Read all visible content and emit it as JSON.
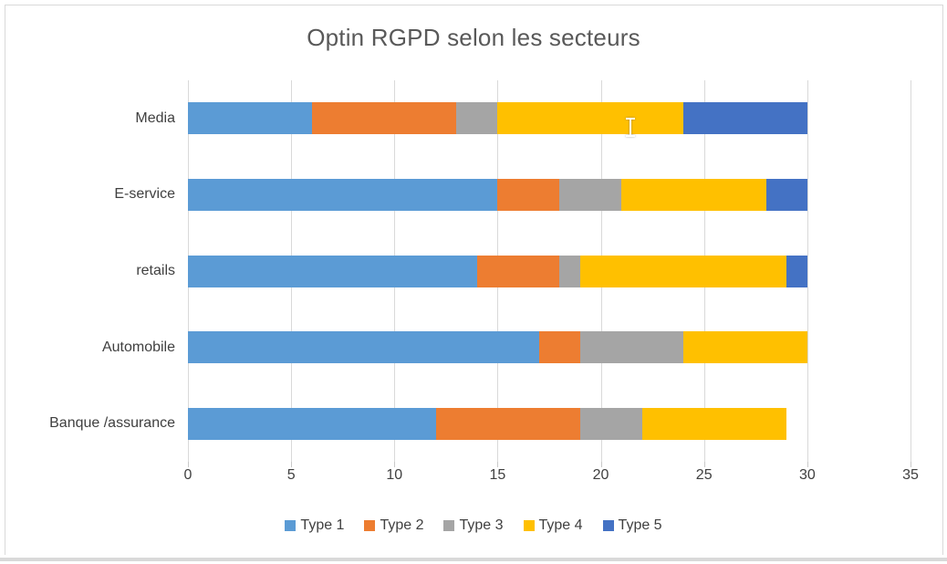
{
  "window": {
    "background_color": "#ffffff",
    "border_color": "#d9d9d9"
  },
  "chart_data": {
    "type": "bar",
    "orientation": "horizontal",
    "stacked": true,
    "title": "Optin RGPD selon les secteurs",
    "categories": [
      "Media",
      "E-service",
      "retails",
      "Automobile",
      "Banque /assurance"
    ],
    "series": [
      {
        "name": "Type 1",
        "color": "#5B9BD5",
        "values": [
          6,
          15,
          14,
          17,
          12
        ]
      },
      {
        "name": "Type 2",
        "color": "#ED7D31",
        "values": [
          7,
          3,
          4,
          2,
          7
        ]
      },
      {
        "name": "Type 3",
        "color": "#A5A5A5",
        "values": [
          2,
          3,
          1,
          5,
          3
        ]
      },
      {
        "name": "Type 4",
        "color": "#FFC000",
        "values": [
          9,
          7,
          10,
          6,
          7
        ]
      },
      {
        "name": "Type 5",
        "color": "#4472C4",
        "values": [
          6,
          2,
          1,
          0,
          0
        ]
      }
    ],
    "x_axis": {
      "min": 0,
      "max": 35,
      "tick_step": 5,
      "tick_labels": [
        "0",
        "5",
        "10",
        "15",
        "20",
        "25",
        "30",
        "35"
      ]
    },
    "legend": {
      "position": "bottom",
      "entries": [
        "Type 1",
        "Type 2",
        "Type 3",
        "Type 4",
        "Type 5"
      ]
    },
    "grid": true,
    "gridline_color": "#d9d9d9",
    "title_color": "#595959",
    "label_color": "#404040"
  },
  "cursor": {
    "name": "text-ibeam-cursor"
  }
}
